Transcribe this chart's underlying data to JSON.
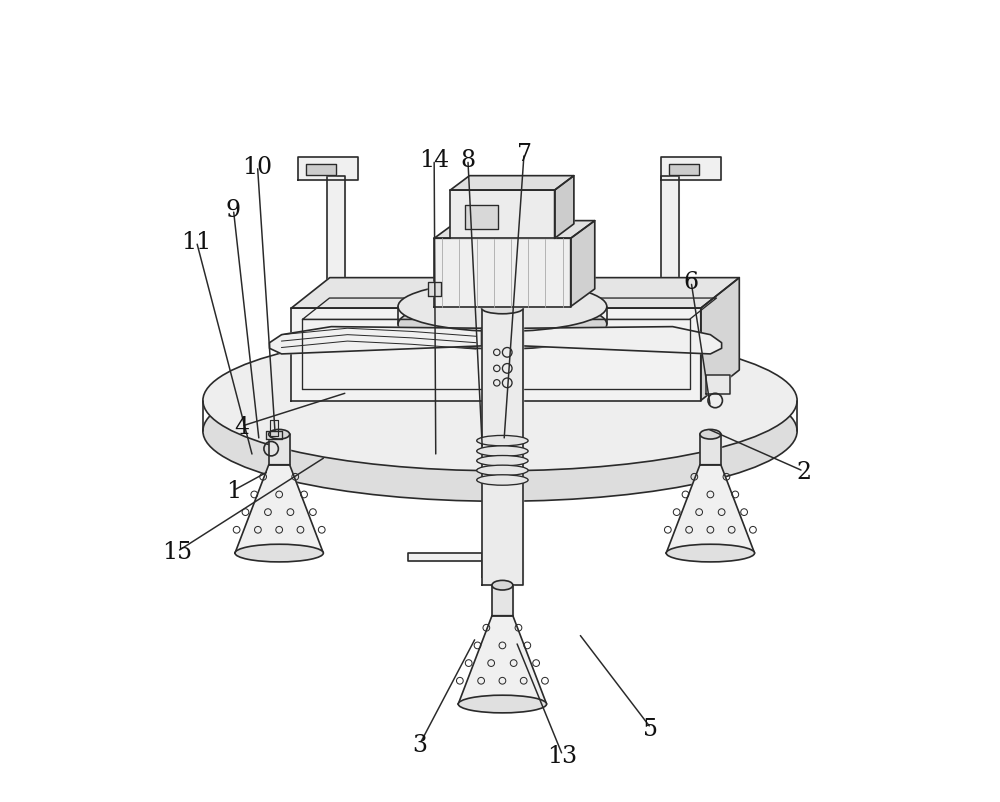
{
  "bg_color": "#ffffff",
  "line_color": "#2a2a2a",
  "line_width": 1.2,
  "figsize": [
    10.0,
    8.03
  ]
}
